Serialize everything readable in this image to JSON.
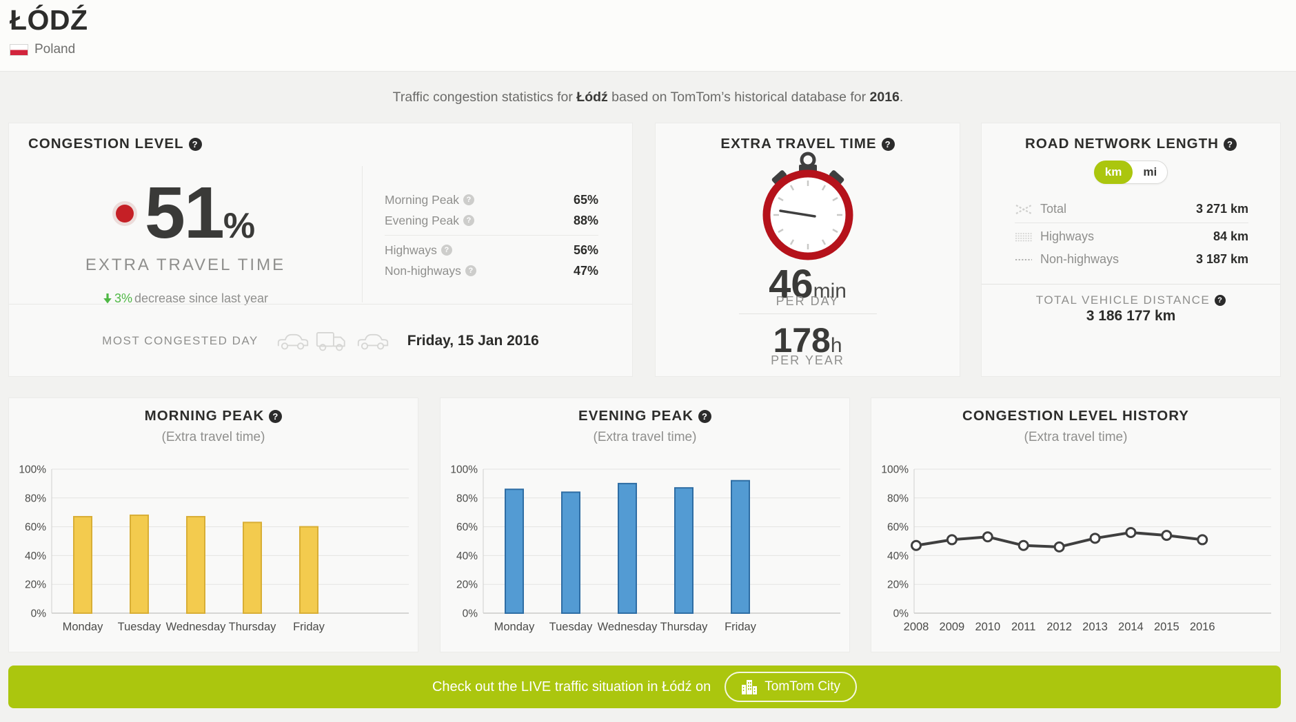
{
  "header": {
    "city": "ŁÓDŹ",
    "country": "Poland"
  },
  "intro": {
    "part1": "Traffic congestion statistics for ",
    "city": "Łódź",
    "part2": " based on TomTom’s historical database for ",
    "year": "2016",
    "part3": "."
  },
  "icons": {
    "help": "?"
  },
  "congestion": {
    "title": "CONGESTION LEVEL",
    "value": "51",
    "unit": "%",
    "value_label": "EXTRA TRAVEL TIME",
    "trend_value": "3%",
    "trend_text": "decrease since last year",
    "stats": [
      {
        "label": "Morning Peak",
        "value": "65%"
      },
      {
        "label": "Evening Peak",
        "value": "88%"
      },
      {
        "label": "Highways",
        "value": "56%"
      },
      {
        "label": "Non-highways",
        "value": "47%"
      }
    ],
    "most_congested_label": "MOST CONGESTED DAY",
    "most_congested_value": "Friday, 15 Jan 2016"
  },
  "extra_travel": {
    "title": "EXTRA TRAVEL TIME",
    "day_value": "46",
    "day_unit": "min",
    "day_label": "PER DAY",
    "year_value": "178",
    "year_unit": "h",
    "year_label": "PER YEAR"
  },
  "road_network": {
    "title": "ROAD NETWORK LENGTH",
    "unit_km": "km",
    "unit_mi": "mi",
    "rows": [
      {
        "label": "Total",
        "value": "3 271 km"
      },
      {
        "label": "Highways",
        "value": "84 km"
      },
      {
        "label": "Non-highways",
        "value": "3 187 km"
      }
    ],
    "total_vehicle_label": "TOTAL VEHICLE DISTANCE",
    "total_vehicle_value": "3 186 177 km"
  },
  "chart_data": [
    {
      "type": "bar",
      "title": "MORNING PEAK",
      "subtitle": "(Extra travel time)",
      "categories": [
        "Monday",
        "Tuesday",
        "Wednesday",
        "Thursday",
        "Friday"
      ],
      "values": [
        67,
        68,
        67,
        63,
        60
      ],
      "ylim": [
        0,
        100
      ],
      "yticks": [
        0,
        20,
        40,
        60,
        80,
        100
      ],
      "ylabel_suffix": "%",
      "grid": true,
      "bar_color": "#f3cb4e",
      "bar_border": "#d8ae35"
    },
    {
      "type": "bar",
      "title": "EVENING PEAK",
      "subtitle": "(Extra travel time)",
      "categories": [
        "Monday",
        "Tuesday",
        "Wednesday",
        "Thursday",
        "Friday"
      ],
      "values": [
        86,
        84,
        90,
        87,
        92
      ],
      "ylim": [
        0,
        100
      ],
      "yticks": [
        0,
        20,
        40,
        60,
        80,
        100
      ],
      "ylabel_suffix": "%",
      "grid": true,
      "bar_color": "#539bd3",
      "bar_border": "#2e6da4"
    },
    {
      "type": "line",
      "title": "CONGESTION LEVEL HISTORY",
      "subtitle": "(Extra travel time)",
      "categories": [
        "2008",
        "2009",
        "2010",
        "2011",
        "2012",
        "2013",
        "2014",
        "2015",
        "2016"
      ],
      "values": [
        47,
        51,
        53,
        47,
        46,
        52,
        56,
        54,
        51
      ],
      "ylim": [
        0,
        100
      ],
      "yticks": [
        0,
        20,
        40,
        60,
        80,
        100
      ],
      "ylabel_suffix": "%",
      "grid": true,
      "line_color": "#3f3f3f"
    }
  ],
  "banner": {
    "text": "Check out the LIVE traffic situation in Łódź on",
    "button": "TomTom City"
  },
  "colors": {
    "accent_green": "#abc60e",
    "trend_green": "#4fb845",
    "indicator_red": "#c52026",
    "stopwatch_red": "#b5121b",
    "bar_yellow": "#f3cb4e",
    "bar_blue": "#539bd3"
  }
}
